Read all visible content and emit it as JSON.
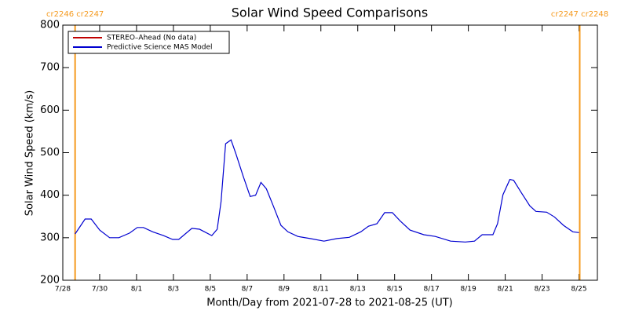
{
  "chart_data": {
    "type": "line",
    "title": "Solar Wind Speed Comparisons",
    "y_label": "Solar Wind Speed (km/s)",
    "x_label": "Month/Day from 2021-07-28 to 2021-08-25 (UT)",
    "x": [
      "2021-07-28T16:00",
      "2021-07-29T05:00",
      "2021-07-29T13:00",
      "2021-07-30T00:00",
      "2021-07-30T13:00",
      "2021-07-31T01:00",
      "2021-07-31T15:00",
      "2021-08-01T01:00",
      "2021-08-01T09:00",
      "2021-08-01T21:00",
      "2021-08-02T11:00",
      "2021-08-02T23:00",
      "2021-08-03T07:00",
      "2021-08-04T00:00",
      "2021-08-04T10:00",
      "2021-08-05T02:00",
      "2021-08-05T09:00",
      "2021-08-05T14:00",
      "2021-08-05T20:00",
      "2021-08-06T03:00",
      "2021-08-06T09:00",
      "2021-08-06T19:00",
      "2021-08-07T04:00",
      "2021-08-07T11:00",
      "2021-08-07T18:00",
      "2021-08-08T01:00",
      "2021-08-08T10:00",
      "2021-08-08T20:00",
      "2021-08-09T05:00",
      "2021-08-09T18:00",
      "2021-08-10T10:00",
      "2021-08-11T04:00",
      "2021-08-11T21:00",
      "2021-08-12T13:00",
      "2021-08-13T04:00",
      "2021-08-13T14:00",
      "2021-08-14T01:00",
      "2021-08-14T11:00",
      "2021-08-14T21:00",
      "2021-08-15T07:00",
      "2021-08-15T20:00",
      "2021-08-16T14:00",
      "2021-08-17T05:00",
      "2021-08-18T01:00",
      "2021-08-18T20:00",
      "2021-08-19T08:00",
      "2021-08-19T18:00",
      "2021-08-20T08:00",
      "2021-08-20T14:00",
      "2021-08-20T21:00",
      "2021-08-21T06:00",
      "2021-08-21T11:00",
      "2021-08-21T21:00",
      "2021-08-22T08:00",
      "2021-08-22T16:00",
      "2021-08-23T06:00",
      "2021-08-23T16:00",
      "2021-08-24T04:00",
      "2021-08-24T16:00",
      "2021-08-25T00:00"
    ],
    "series": [
      {
        "name": "STEREO–Ahead (No data)",
        "color": "#c00000",
        "values": [
          null,
          null,
          null,
          null,
          null,
          null,
          null,
          null,
          null,
          null,
          null,
          null,
          null,
          null,
          null,
          null,
          null,
          null,
          null,
          null,
          null,
          null,
          null,
          null,
          null,
          null,
          null,
          null,
          null,
          null,
          null,
          null,
          null,
          null,
          null,
          null,
          null,
          null,
          null,
          null,
          null,
          null,
          null,
          null,
          null,
          null,
          null,
          null,
          null,
          null,
          null,
          null,
          null,
          null,
          null,
          null,
          null,
          null,
          null,
          null
        ]
      },
      {
        "name": "Predictive Science MAS Model",
        "color": "#0000d0",
        "values": [
          309,
          344,
          344,
          318,
          300,
          300,
          311,
          324,
          324,
          314,
          305,
          296,
          296,
          322,
          320,
          305,
          320,
          385,
          521,
          530,
          499,
          444,
          397,
          400,
          430,
          415,
          375,
          329,
          314,
          303,
          298,
          292,
          298,
          301,
          314,
          327,
          333,
          359,
          359,
          340,
          318,
          307,
          303,
          292,
          290,
          292,
          307,
          307,
          333,
          401,
          437,
          435,
          406,
          375,
          362,
          360,
          349,
          329,
          314,
          312
        ]
      }
    ],
    "xlim": [
      "2021-07-28T00:00",
      "2021-08-26T00:00"
    ],
    "xticks": [
      {
        "value": "2021-07-28T00:00",
        "label": "7/28"
      },
      {
        "value": "2021-07-30T00:00",
        "label": "7/30"
      },
      {
        "value": "2021-08-01T00:00",
        "label": "8/1"
      },
      {
        "value": "2021-08-03T00:00",
        "label": "8/3"
      },
      {
        "value": "2021-08-05T00:00",
        "label": "8/5"
      },
      {
        "value": "2021-08-07T00:00",
        "label": "8/7"
      },
      {
        "value": "2021-08-09T00:00",
        "label": "8/9"
      },
      {
        "value": "2021-08-11T00:00",
        "label": "8/11"
      },
      {
        "value": "2021-08-13T00:00",
        "label": "8/13"
      },
      {
        "value": "2021-08-15T00:00",
        "label": "8/15"
      },
      {
        "value": "2021-08-17T00:00",
        "label": "8/17"
      },
      {
        "value": "2021-08-19T00:00",
        "label": "8/19"
      },
      {
        "value": "2021-08-21T00:00",
        "label": "8/21"
      },
      {
        "value": "2021-08-23T00:00",
        "label": "8/23"
      },
      {
        "value": "2021-08-25T00:00",
        "label": "8/25"
      }
    ],
    "ylim": [
      200,
      800
    ],
    "yticks": [
      200,
      300,
      400,
      500,
      600,
      700,
      800
    ],
    "legend": "upper left",
    "annotation_color": "#f59a1e",
    "annotations": [
      {
        "x": "2021-07-28T16:00",
        "label": "cr2246 cr2247"
      },
      {
        "x": "2021-08-25T01:00",
        "label": "cr2247 cr2248"
      }
    ]
  }
}
